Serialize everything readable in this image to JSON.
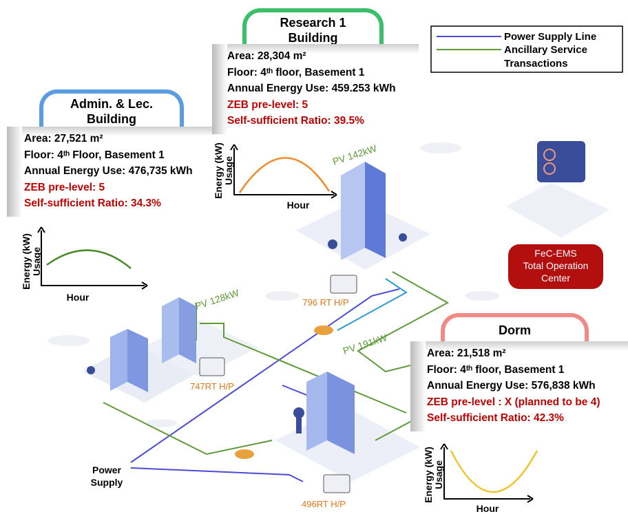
{
  "legend": {
    "items": [
      {
        "label": "Power Supply Line",
        "color": "#4b4bd6"
      },
      {
        "label": "Ancillary Service Transactions",
        "color": "#5e9a3a"
      }
    ]
  },
  "buildings": [
    {
      "title": [
        "Admin. & Lec.",
        "Building"
      ],
      "area": "Area: 27,521 m²",
      "floor": "Floor: 4ᵗʰ Floor, Basement 1",
      "energy": "Annual Energy Use: 476,735 kWh",
      "zeb": "ZEB pre-level: 5",
      "ratio": "Self-sufficient Ratio: 34.3%",
      "chart": {
        "y_label": [
          "Energy (kW)",
          "Usage"
        ],
        "x_label": "Hour"
      }
    },
    {
      "title": [
        "Research 1",
        "Building"
      ],
      "area": "Area: 28,304 m²",
      "floor": "Floor: 4ᵗʰ floor, Basement 1",
      "energy": "Annual Energy Use: 459.253 kWh",
      "zeb": "ZEB pre-level: 5",
      "ratio": "Self-sufficient Ratio: 39.5%",
      "chart": {
        "y_label": [
          "Energy (kW)",
          "Usage"
        ],
        "x_label": "Hour"
      }
    },
    {
      "title": [
        "Dorm"
      ],
      "area": "Area: 21,518 m²",
      "floor": "Floor: 4ᵗʰ floor, Basement 1",
      "energy": "Annual Energy Use: 576,838 kWh",
      "zeb": "ZEB pre-level : X (planned to be 4)",
      "ratio": "Self-sufficient Ratio: 42.3%",
      "chart": {
        "y_label": [
          "Energy (kW)",
          "Usage"
        ],
        "x_label": "Hour"
      }
    }
  ],
  "labels": {
    "pv": [
      "PV 142kW",
      "PV 128kW",
      "PV 191kW"
    ],
    "heat_pumps": [
      "796 RT H/P",
      "747RT H/P",
      "496RT H/P"
    ],
    "power_supply": [
      "Power",
      "Supply"
    ],
    "center": [
      "FeC-EMS",
      "Total Operation",
      "Center"
    ]
  }
}
